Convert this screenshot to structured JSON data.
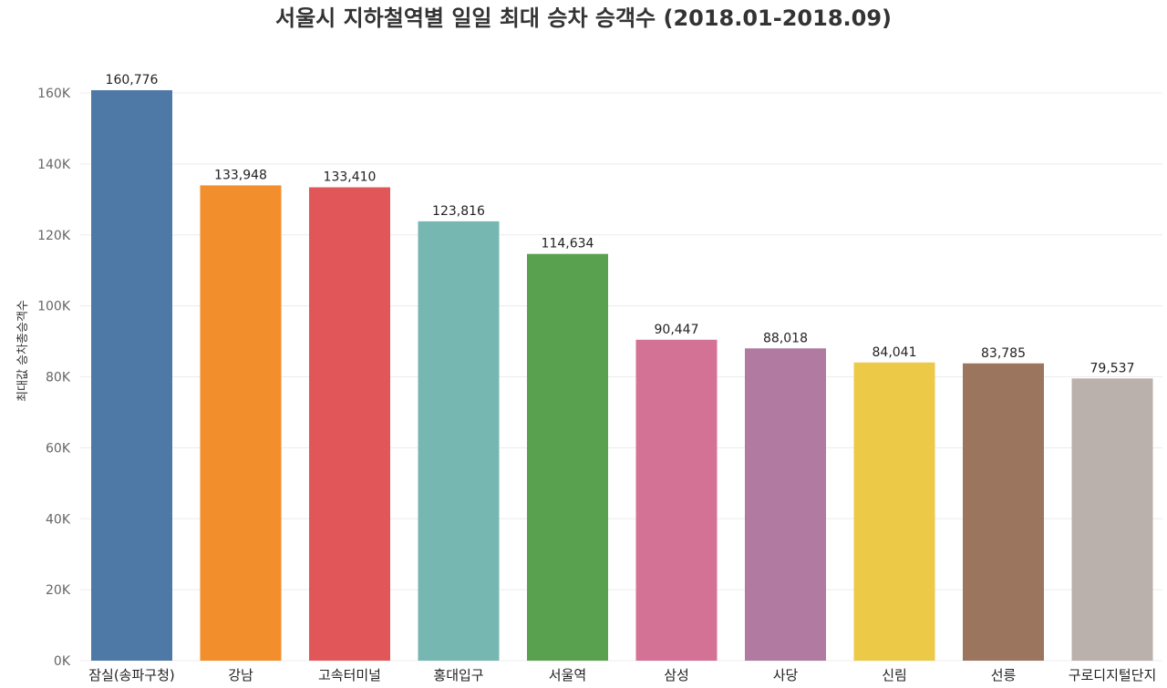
{
  "chart_data": {
    "type": "bar",
    "title": "서울시 지하철역별 일일 최대 승차 승객수 (2018.01-2018.09)",
    "xlabel": "",
    "ylabel": "최대값 승차총승객수",
    "ylim": [
      0,
      170000
    ],
    "yticks": [
      0,
      20000,
      40000,
      60000,
      80000,
      100000,
      120000,
      140000,
      160000
    ],
    "ytick_labels": [
      "0K",
      "20K",
      "40K",
      "60K",
      "80K",
      "100K",
      "120K",
      "140K",
      "160K"
    ],
    "grid": true,
    "categories": [
      "잠실(송파구청)",
      "강남",
      "고속터미널",
      "홍대입구",
      "서울역",
      "삼성",
      "사당",
      "신림",
      "선릉",
      "구로디지털단지"
    ],
    "values": [
      160776,
      133948,
      133410,
      123816,
      114634,
      90447,
      88018,
      84041,
      83785,
      79537
    ],
    "value_labels": [
      "160,776",
      "133,948",
      "133,410",
      "123,816",
      "114,634",
      "90,447",
      "88,018",
      "84,041",
      "83,785",
      "79,537"
    ],
    "colors": [
      "#4e79a7",
      "#f28e2b",
      "#e15759",
      "#76b7b2",
      "#59a14f",
      "#d37295",
      "#b07aa1",
      "#edc948",
      "#9c755f",
      "#bab0ac"
    ]
  }
}
